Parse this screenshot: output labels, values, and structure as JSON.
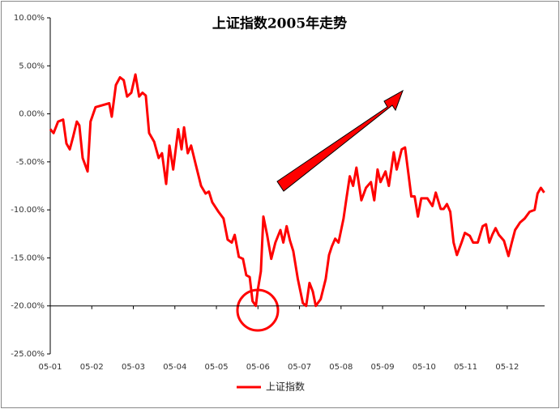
{
  "chart_data": {
    "type": "line",
    "title": "上证指数2005年走势",
    "x": [
      0,
      0.08,
      0.19,
      0.31,
      0.39,
      0.47,
      0.55,
      0.64,
      0.7,
      0.78,
      0.9,
      0.97,
      1.09,
      1.42,
      1.48,
      1.58,
      1.68,
      1.77,
      1.85,
      1.95,
      2.05,
      2.14,
      2.22,
      2.3,
      2.38,
      2.5,
      2.61,
      2.69,
      2.79,
      2.87,
      2.96,
      3.08,
      3.16,
      3.22,
      3.31,
      3.39,
      3.51,
      3.63,
      3.74,
      3.82,
      3.9,
      4.05,
      4.17,
      4.27,
      4.37,
      4.44,
      4.54,
      4.64,
      4.72,
      4.8,
      4.87,
      4.95,
      4.99,
      5.07,
      5.13,
      5.22,
      5.32,
      5.42,
      5.54,
      5.61,
      5.69,
      5.77,
      5.85,
      5.96,
      6.08,
      6.16,
      6.24,
      6.32,
      6.39,
      6.51,
      6.63,
      6.71,
      6.78,
      6.86,
      6.94,
      7.06,
      7.13,
      7.21,
      7.29,
      7.37,
      7.49,
      7.6,
      7.72,
      7.8,
      7.88,
      7.95,
      8.07,
      8.15,
      8.27,
      8.34,
      8.46,
      8.54,
      8.62,
      8.69,
      8.77,
      8.85,
      8.93,
      9.08,
      9.2,
      9.28,
      9.4,
      9.47,
      9.55,
      9.63,
      9.71,
      9.79,
      9.9,
      9.98,
      10.1,
      10.18,
      10.29,
      10.41,
      10.49,
      10.57,
      10.64,
      10.72,
      10.8,
      10.92,
      11.03,
      11.11,
      11.19,
      11.31,
      11.42,
      11.54,
      11.66,
      11.73,
      11.81,
      11.89
    ],
    "series": [
      {
        "name": "上证指数",
        "color": "#ff0000",
        "values": [
          -1.6,
          -2,
          -0.8,
          -0.6,
          -3.1,
          -3.7,
          -2.4,
          -0.8,
          -1.2,
          -4.6,
          -6,
          -0.8,
          0.7,
          1.1,
          -0.3,
          3,
          3.8,
          3.5,
          1.8,
          2.2,
          4.1,
          1.8,
          2.2,
          1.9,
          -2,
          -2.9,
          -4.6,
          -4.1,
          -7.3,
          -3.3,
          -5.8,
          -1.6,
          -3.7,
          -1.4,
          -4.1,
          -3.3,
          -5.4,
          -7.5,
          -8.3,
          -8.1,
          -9.2,
          -10.2,
          -10.9,
          -13.1,
          -13.4,
          -12.6,
          -14.9,
          -15.1,
          -16.8,
          -17,
          -19.5,
          -20,
          -18.5,
          -16.4,
          -10.7,
          -12.6,
          -15.1,
          -13.4,
          -12.1,
          -13.4,
          -11.7,
          -13.2,
          -14.3,
          -17.2,
          -19.7,
          -20,
          -17.6,
          -18.5,
          -20,
          -19.3,
          -17.2,
          -14.7,
          -13.8,
          -13,
          -13.4,
          -10.9,
          -8.8,
          -6.5,
          -7.5,
          -5.6,
          -9,
          -7.7,
          -7.1,
          -9,
          -5.8,
          -7.1,
          -6,
          -7.5,
          -4,
          -5.8,
          -3.7,
          -3.5,
          -6.2,
          -8.6,
          -8.6,
          -10.7,
          -8.8,
          -8.8,
          -9.6,
          -8.2,
          -9.9,
          -9.9,
          -9.4,
          -10.2,
          -13.4,
          -14.7,
          -13.4,
          -12.4,
          -12.7,
          -13.4,
          -13.4,
          -11.7,
          -11.5,
          -13.4,
          -12.6,
          -11.9,
          -12.6,
          -13.2,
          -14.8,
          -13.4,
          -12.1,
          -11.3,
          -10.9,
          -10.2,
          -10,
          -8.3,
          -7.7,
          -8.2
        ]
      }
    ],
    "xlim": [
      0,
      11.9
    ],
    "xticks": [
      {
        "value": 0,
        "label": "05-01"
      },
      {
        "value": 1,
        "label": "05-02"
      },
      {
        "value": 2,
        "label": "05-03"
      },
      {
        "value": 3,
        "label": "05-04"
      },
      {
        "value": 4,
        "label": "05-05"
      },
      {
        "value": 5,
        "label": "05-06"
      },
      {
        "value": 6,
        "label": "05-07"
      },
      {
        "value": 7,
        "label": "05-08"
      },
      {
        "value": 8,
        "label": "05-09"
      },
      {
        "value": 9,
        "label": "05-10"
      },
      {
        "value": 10,
        "label": "05-11"
      },
      {
        "value": 11,
        "label": "05-12"
      }
    ],
    "ylim": [
      -25,
      10
    ],
    "yticks": [
      {
        "value": 10,
        "label": "10.00%"
      },
      {
        "value": 5,
        "label": "5.00%"
      },
      {
        "value": 0,
        "label": "0.00%"
      },
      {
        "value": -5,
        "label": "-5.00%"
      },
      {
        "value": -10,
        "label": "-10.00%"
      },
      {
        "value": -15,
        "label": "-15.00%"
      },
      {
        "value": -20,
        "label": "-20.00%"
      },
      {
        "value": -25,
        "label": "-25.00%"
      }
    ],
    "x_axis_crossing": -20,
    "legend": "bottom"
  }
}
